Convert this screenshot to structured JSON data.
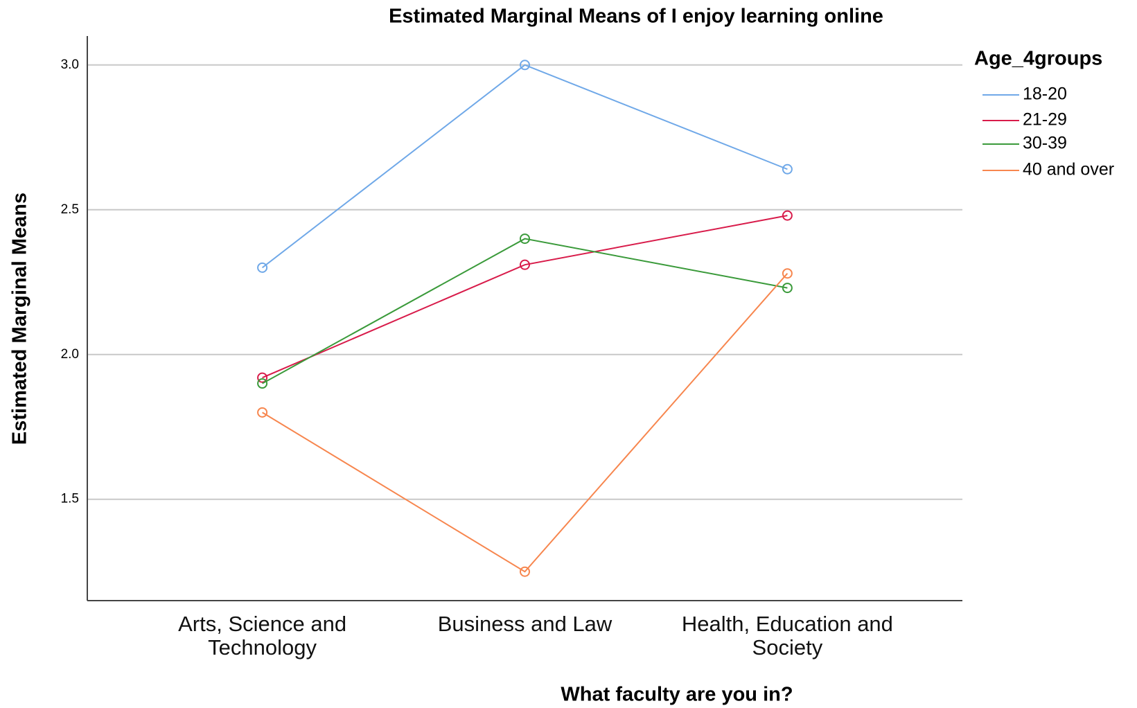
{
  "chart_data": {
    "type": "line",
    "title": "Estimated Marginal Means of I enjoy learning online",
    "x_label": "What faculty are you in?",
    "y_label": "Estimated Marginal Means",
    "legend_title": "Age_4groups",
    "categories": [
      "Arts, Science and Technology",
      "Business and Law",
      "Health, Education and Society"
    ],
    "series": [
      {
        "name": "18-20",
        "color": "#6fa8e8",
        "values": [
          2.3,
          3.0,
          2.64
        ]
      },
      {
        "name": "21-29",
        "color": "#d81b4a",
        "values": [
          1.92,
          2.31,
          2.48
        ]
      },
      {
        "name": "30-39",
        "color": "#3a9a3a",
        "values": [
          1.9,
          2.4,
          2.23
        ]
      },
      {
        "name": "40 and over",
        "color": "#f7864e",
        "values": [
          1.8,
          1.25,
          2.28
        ]
      }
    ],
    "ylim": [
      1.15,
      3.1
    ],
    "yticks": [
      {
        "value": 1.5,
        "label": "1.5"
      },
      {
        "value": 2.0,
        "label": "2.0"
      },
      {
        "value": 2.5,
        "label": "2.5"
      },
      {
        "value": 3.0,
        "label": "3.0"
      }
    ],
    "grid": true,
    "legend": "right"
  }
}
